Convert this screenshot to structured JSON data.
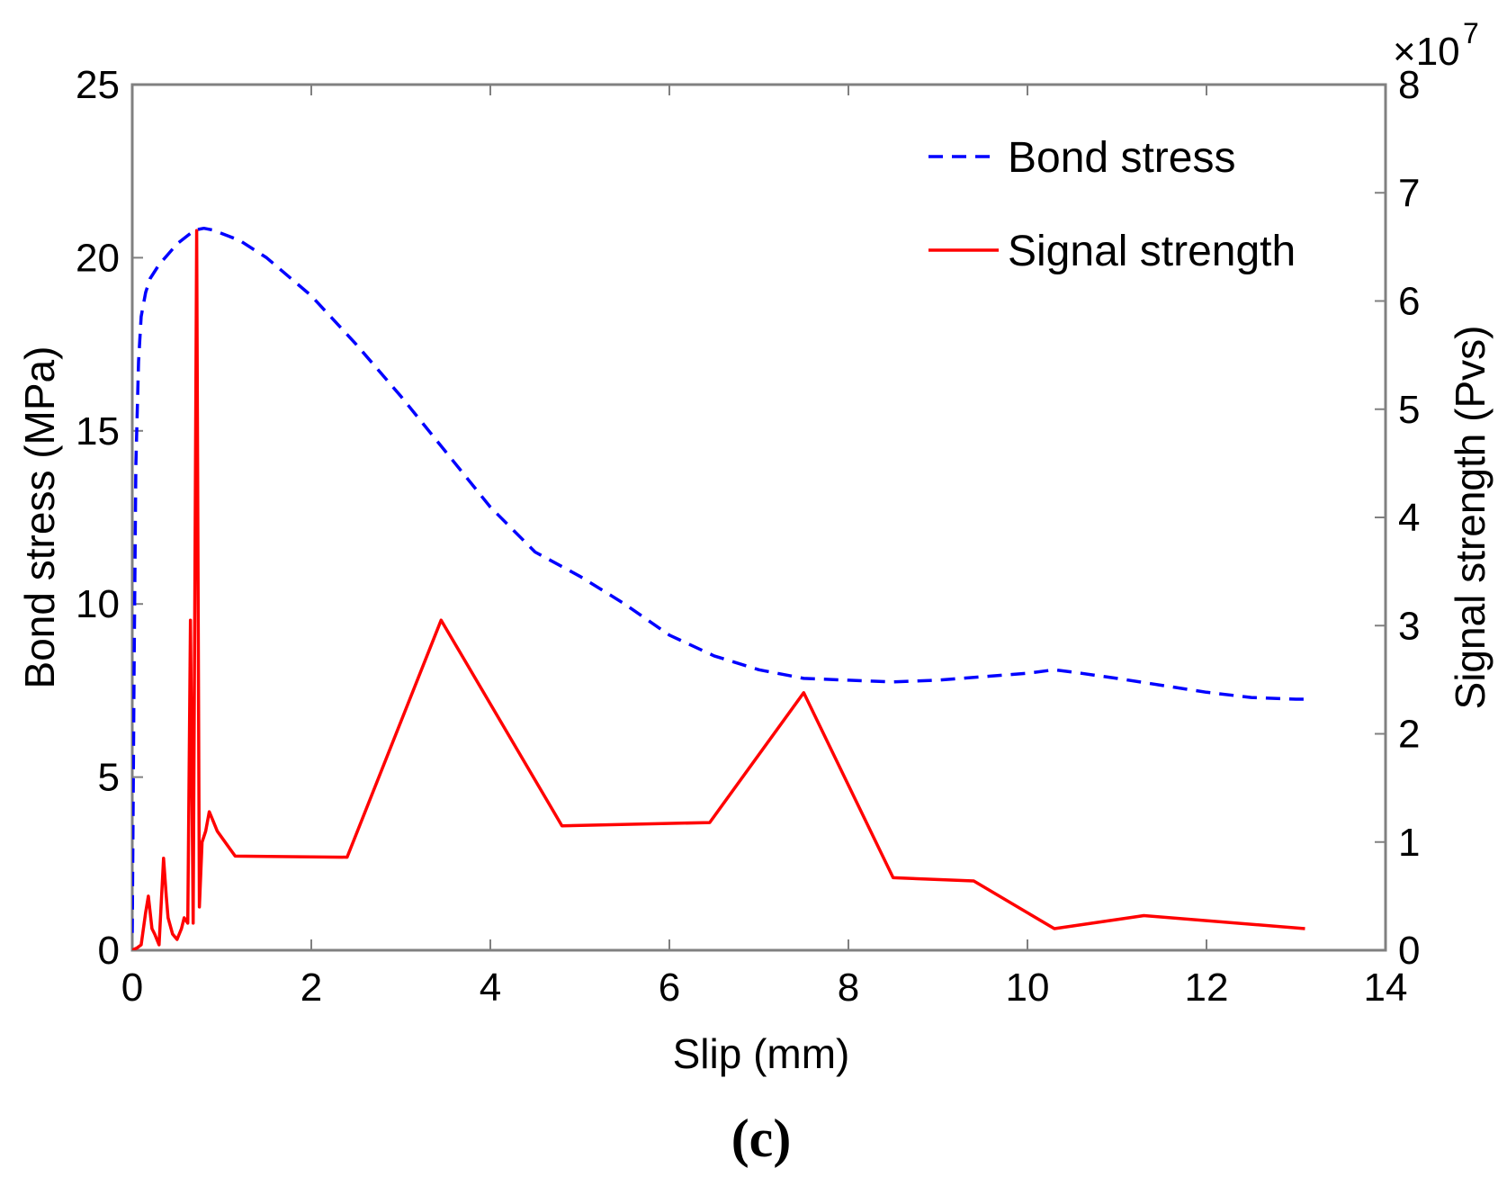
{
  "chart_data": {
    "type": "line",
    "title": "",
    "xlabel": "Slip (mm)",
    "ylabel": "Bond stress (MPa)",
    "y2label": "Signal strength (Pvs)",
    "xlim": [
      0,
      14
    ],
    "ylim": [
      0,
      25
    ],
    "y2lim": [
      0,
      8
    ],
    "y2_multiplier": "×10",
    "y2_exponent": "7",
    "xticks": [
      "0",
      "2",
      "4",
      "6",
      "8",
      "10",
      "12",
      "14"
    ],
    "yticks": [
      "0",
      "5",
      "10",
      "15",
      "20",
      "25"
    ],
    "y2ticks": [
      "0",
      "1",
      "2",
      "3",
      "4",
      "5",
      "6",
      "7",
      "8"
    ],
    "grid": false,
    "legend_position": "top-right",
    "caption": "(c)",
    "series": [
      {
        "name": "Bond stress",
        "axis": "left",
        "color": "#0000ff",
        "style": "dashed",
        "x": [
          0,
          0.02,
          0.04,
          0.07,
          0.1,
          0.15,
          0.2,
          0.3,
          0.4,
          0.5,
          0.6,
          0.7,
          0.8,
          0.9,
          1.0,
          1.2,
          1.5,
          2.0,
          2.5,
          3.0,
          3.5,
          4.0,
          4.5,
          5.0,
          5.5,
          6.0,
          6.5,
          7.0,
          7.5,
          8.0,
          8.5,
          9.0,
          9.5,
          10.0,
          10.3,
          10.6,
          11.0,
          11.5,
          12.0,
          12.5,
          13.0,
          13.1
        ],
        "y": [
          0.5,
          8,
          14,
          17,
          18.3,
          19.0,
          19.4,
          19.8,
          20.1,
          20.4,
          20.6,
          20.8,
          20.85,
          20.8,
          20.7,
          20.5,
          20.0,
          18.9,
          17.5,
          16.0,
          14.4,
          12.8,
          11.5,
          10.8,
          10.0,
          9.1,
          8.5,
          8.1,
          7.85,
          7.8,
          7.75,
          7.8,
          7.9,
          8.0,
          8.1,
          8.0,
          7.85,
          7.65,
          7.45,
          7.3,
          7.25,
          7.25
        ]
      },
      {
        "name": "Signal strength",
        "axis": "right",
        "color": "#ff0000",
        "style": "solid",
        "x": [
          0,
          0.05,
          0.1,
          0.15,
          0.18,
          0.22,
          0.25,
          0.3,
          0.35,
          0.38,
          0.4,
          0.45,
          0.5,
          0.55,
          0.58,
          0.62,
          0.65,
          0.68,
          0.72,
          0.75,
          0.78,
          0.82,
          0.86,
          0.9,
          0.95,
          1.15,
          2.4,
          3.45,
          4.8,
          6.45,
          7.5,
          8.5,
          9.4,
          10.3,
          11.3,
          13.1
        ],
        "y": [
          0.0,
          0.02,
          0.05,
          0.35,
          0.5,
          0.2,
          0.15,
          0.05,
          0.85,
          0.5,
          0.3,
          0.15,
          0.1,
          0.2,
          0.3,
          0.25,
          3.05,
          0.25,
          6.65,
          0.4,
          1.0,
          1.1,
          1.28,
          1.2,
          1.1,
          0.87,
          0.86,
          3.05,
          1.15,
          1.18,
          2.38,
          0.67,
          0.64,
          0.2,
          0.32,
          0.2
        ]
      }
    ]
  }
}
